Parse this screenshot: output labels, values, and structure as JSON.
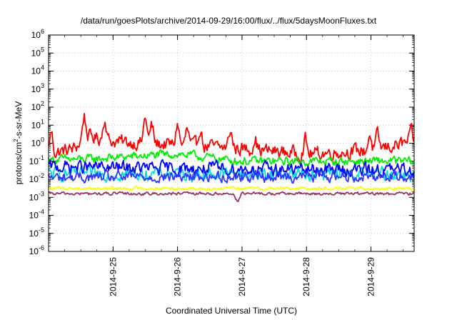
{
  "chart_data": {
    "type": "line",
    "title": "/data/run/goesPlots/archive/2014-09-29/16:00/flux/../flux/5daysMoonFluxes.txt",
    "xlabel": "Coordinated Universal Time (UTC)",
    "ylabel": "protons/cm2-s-sr-MeV",
    "ylabel_parts": [
      "protons/cm",
      "2",
      "-s-sr-MeV"
    ],
    "y_scale": "log",
    "ylim": [
      1e-06,
      1000000.0
    ],
    "y_tick_labels": [
      {
        "base": "10",
        "exp": "6"
      },
      {
        "base": "10",
        "exp": "5"
      },
      {
        "base": "10",
        "exp": "4"
      },
      {
        "base": "10",
        "exp": "3"
      },
      {
        "base": "10",
        "exp": "2"
      },
      {
        "base": "10",
        "exp": "1"
      },
      {
        "base": "10",
        "exp": "0"
      },
      {
        "base": "10",
        "exp": "-1"
      },
      {
        "base": "10",
        "exp": "-2"
      },
      {
        "base": "10",
        "exp": "-3"
      },
      {
        "base": "10",
        "exp": "-4"
      },
      {
        "base": "10",
        "exp": "-5"
      },
      {
        "base": "10",
        "exp": "-6"
      }
    ],
    "xlim": [
      "2014-09-24 00:00",
      "2014-09-29 16:00"
    ],
    "x_tick_labels": [
      "2014-9-25",
      "2014-9-26",
      "2014-9-27",
      "2014-9-28",
      "2014-9-29"
    ],
    "grid": true,
    "series": [
      {
        "color": "#ff0000",
        "base_log": 0.0,
        "noise": 0.32,
        "spikes": [
          [
            0.04,
            1.2
          ],
          [
            0.55,
            1.3
          ],
          [
            0.87,
            1.2
          ],
          [
            1.5,
            1.5
          ],
          [
            1.6,
            1.0
          ],
          [
            2.0,
            1.2
          ],
          [
            2.15,
            0.9
          ],
          [
            2.35,
            1.05
          ],
          [
            2.82,
            1.0
          ],
          [
            3.2,
            0.7
          ],
          [
            3.98,
            0.8
          ],
          [
            4.98,
            0.9
          ],
          [
            5.1,
            0.7
          ],
          [
            5.62,
            0.5
          ]
        ],
        "drift": [
          [
            0,
            -0.6
          ],
          [
            0.4,
            -0.3
          ],
          [
            0.6,
            0.4
          ],
          [
            1.0,
            0.1
          ],
          [
            2.0,
            -0.1
          ],
          [
            3.0,
            -0.3
          ],
          [
            4.0,
            -0.6
          ],
          [
            4.5,
            -0.5
          ],
          [
            5.0,
            -0.4
          ],
          [
            5.67,
            0.1
          ]
        ]
      },
      {
        "color": "#00ee00",
        "base_log": -1.0,
        "noise": 0.2,
        "spikes": [],
        "drift": [
          [
            0,
            -0.9
          ],
          [
            0.5,
            -0.9
          ],
          [
            1.5,
            -0.7
          ],
          [
            2.0,
            -0.6
          ],
          [
            3.0,
            -1.0
          ],
          [
            4.0,
            -1.0
          ],
          [
            5.67,
            -1.0
          ]
        ]
      },
      {
        "color": "#00dddd",
        "base_log": -1.7,
        "noise": 0.3,
        "spikes": [],
        "drift": [
          [
            0,
            -1.7
          ],
          [
            5.67,
            -1.7
          ]
        ]
      },
      {
        "color": "#0000ff",
        "base_log": -1.5,
        "noise": 0.3,
        "spikes": [],
        "drift": [
          [
            0,
            -1.3
          ],
          [
            2.0,
            -1.4
          ],
          [
            5.67,
            -1.5
          ]
        ]
      },
      {
        "color": "#3333ff",
        "base_log": -1.7,
        "noise": 0.25,
        "spikes": [],
        "drift": [
          [
            0,
            -1.9
          ],
          [
            5.67,
            -1.8
          ]
        ]
      },
      {
        "color": "#ffff00",
        "base_log": -2.5,
        "noise": 0.08,
        "spikes": [],
        "drift": [
          [
            0,
            -2.5
          ],
          [
            5.67,
            -2.5
          ]
        ]
      },
      {
        "color": "#993366",
        "base_log": -2.8,
        "noise": 0.07,
        "spikes": [
          [
            2.93,
            -0.4
          ]
        ],
        "drift": [
          [
            0,
            -2.8
          ],
          [
            5.67,
            -2.8
          ]
        ]
      }
    ]
  }
}
